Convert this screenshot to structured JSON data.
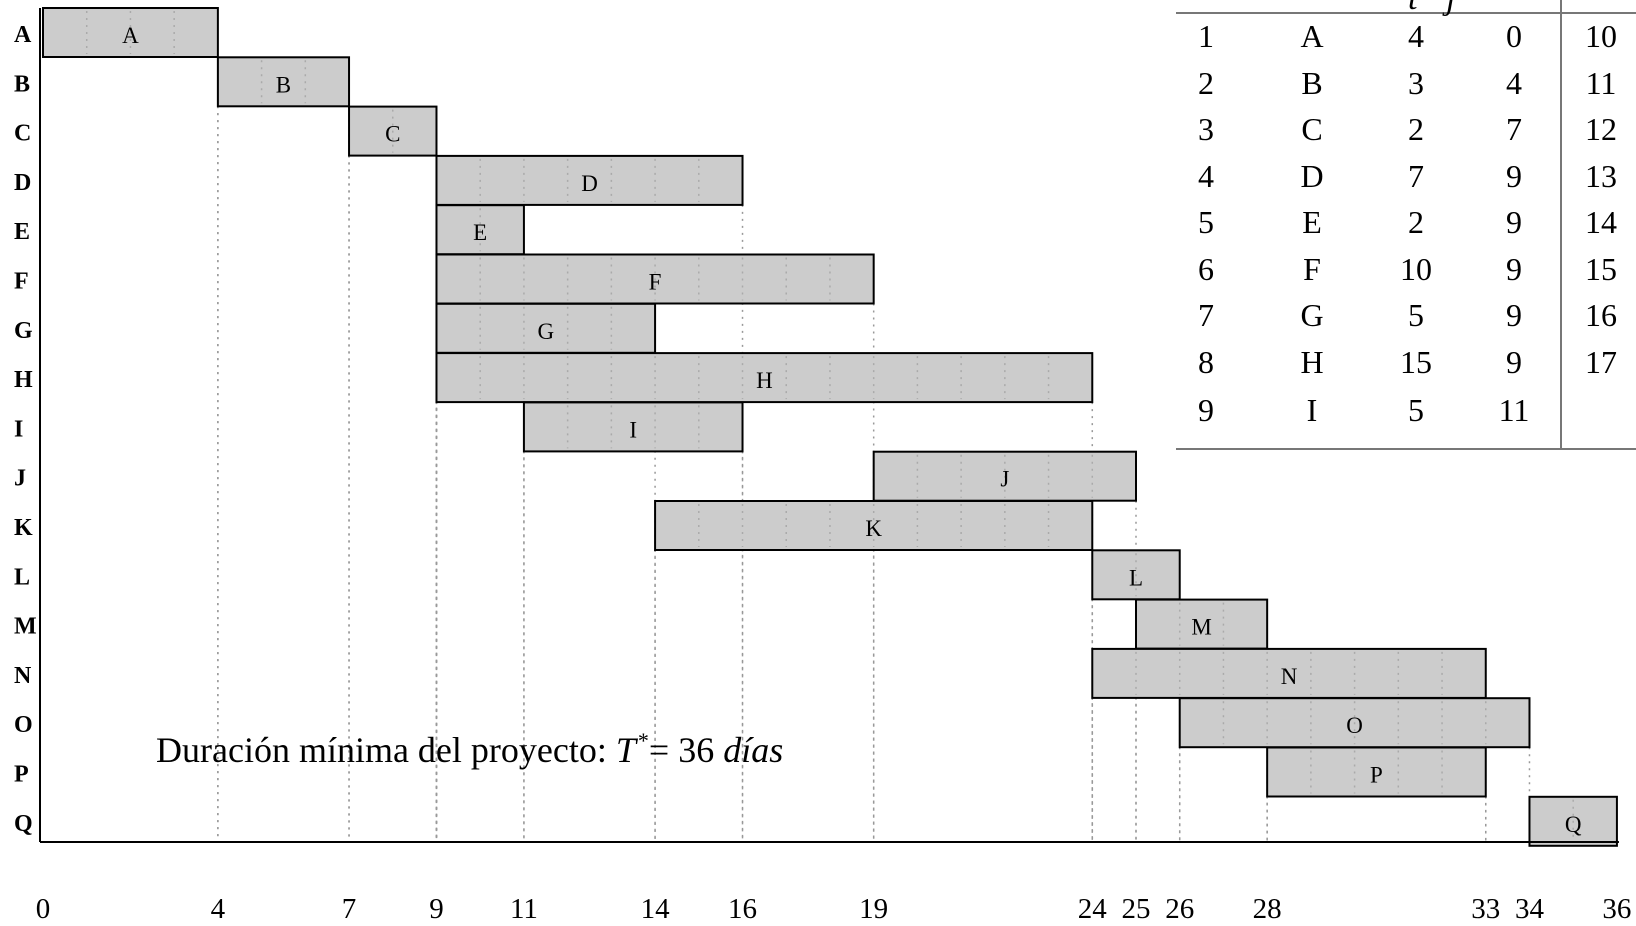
{
  "chart_data": {
    "type": "gantt",
    "x_ticks": [
      0,
      4,
      7,
      9,
      11,
      14,
      16,
      19,
      24,
      25,
      26,
      28,
      33,
      34,
      36
    ],
    "xlim": [
      0,
      36
    ],
    "tasks": [
      {
        "row": "A",
        "label": "A",
        "start": 0,
        "end": 4
      },
      {
        "row": "B",
        "label": "B",
        "start": 4,
        "end": 7
      },
      {
        "row": "C",
        "label": "C",
        "start": 7,
        "end": 9
      },
      {
        "row": "D",
        "label": "D",
        "start": 9,
        "end": 16
      },
      {
        "row": "E",
        "label": "E",
        "start": 9,
        "end": 11
      },
      {
        "row": "F",
        "label": "F",
        "start": 9,
        "end": 19
      },
      {
        "row": "G",
        "label": "G",
        "start": 9,
        "end": 14
      },
      {
        "row": "H",
        "label": "H",
        "start": 9,
        "end": 24
      },
      {
        "row": "I",
        "label": "I",
        "start": 11,
        "end": 16
      },
      {
        "row": "J",
        "label": "J",
        "start": 19,
        "end": 25
      },
      {
        "row": "K",
        "label": "K",
        "start": 14,
        "end": 24
      },
      {
        "row": "L",
        "label": "L",
        "start": 24,
        "end": 26
      },
      {
        "row": "M",
        "label": "M",
        "start": 25,
        "end": 28
      },
      {
        "row": "N",
        "label": "N",
        "start": 24,
        "end": 33
      },
      {
        "row": "O",
        "label": "O",
        "start": 26,
        "end": 34
      },
      {
        "row": "P",
        "label": "P",
        "start": 28,
        "end": 33
      },
      {
        "row": "Q",
        "label": "Q",
        "start": 34,
        "end": 36
      }
    ]
  },
  "note": {
    "prefix": "Duración mínima del proyecto: ",
    "symbol": "T",
    "superscript": "*",
    "equals": "=  36 ",
    "unit": "días"
  },
  "table": {
    "header": {
      "c3": "t",
      "c4": "j"
    },
    "rows": [
      {
        "n": "1",
        "act": "A",
        "dur": "4",
        "start": "0",
        "next": "10"
      },
      {
        "n": "2",
        "act": "B",
        "dur": "3",
        "start": "4",
        "next": "11"
      },
      {
        "n": "3",
        "act": "C",
        "dur": "2",
        "start": "7",
        "next": "12"
      },
      {
        "n": "4",
        "act": "D",
        "dur": "7",
        "start": "9",
        "next": "13"
      },
      {
        "n": "5",
        "act": "E",
        "dur": "2",
        "start": "9",
        "next": "14"
      },
      {
        "n": "6",
        "act": "F",
        "dur": "10",
        "start": "9",
        "next": "15"
      },
      {
        "n": "7",
        "act": "G",
        "dur": "5",
        "start": "9",
        "next": "16"
      },
      {
        "n": "8",
        "act": "H",
        "dur": "15",
        "start": "9",
        "next": "17"
      },
      {
        "n": "9",
        "act": "I",
        "dur": "5",
        "start": "11",
        "next": ""
      }
    ]
  }
}
